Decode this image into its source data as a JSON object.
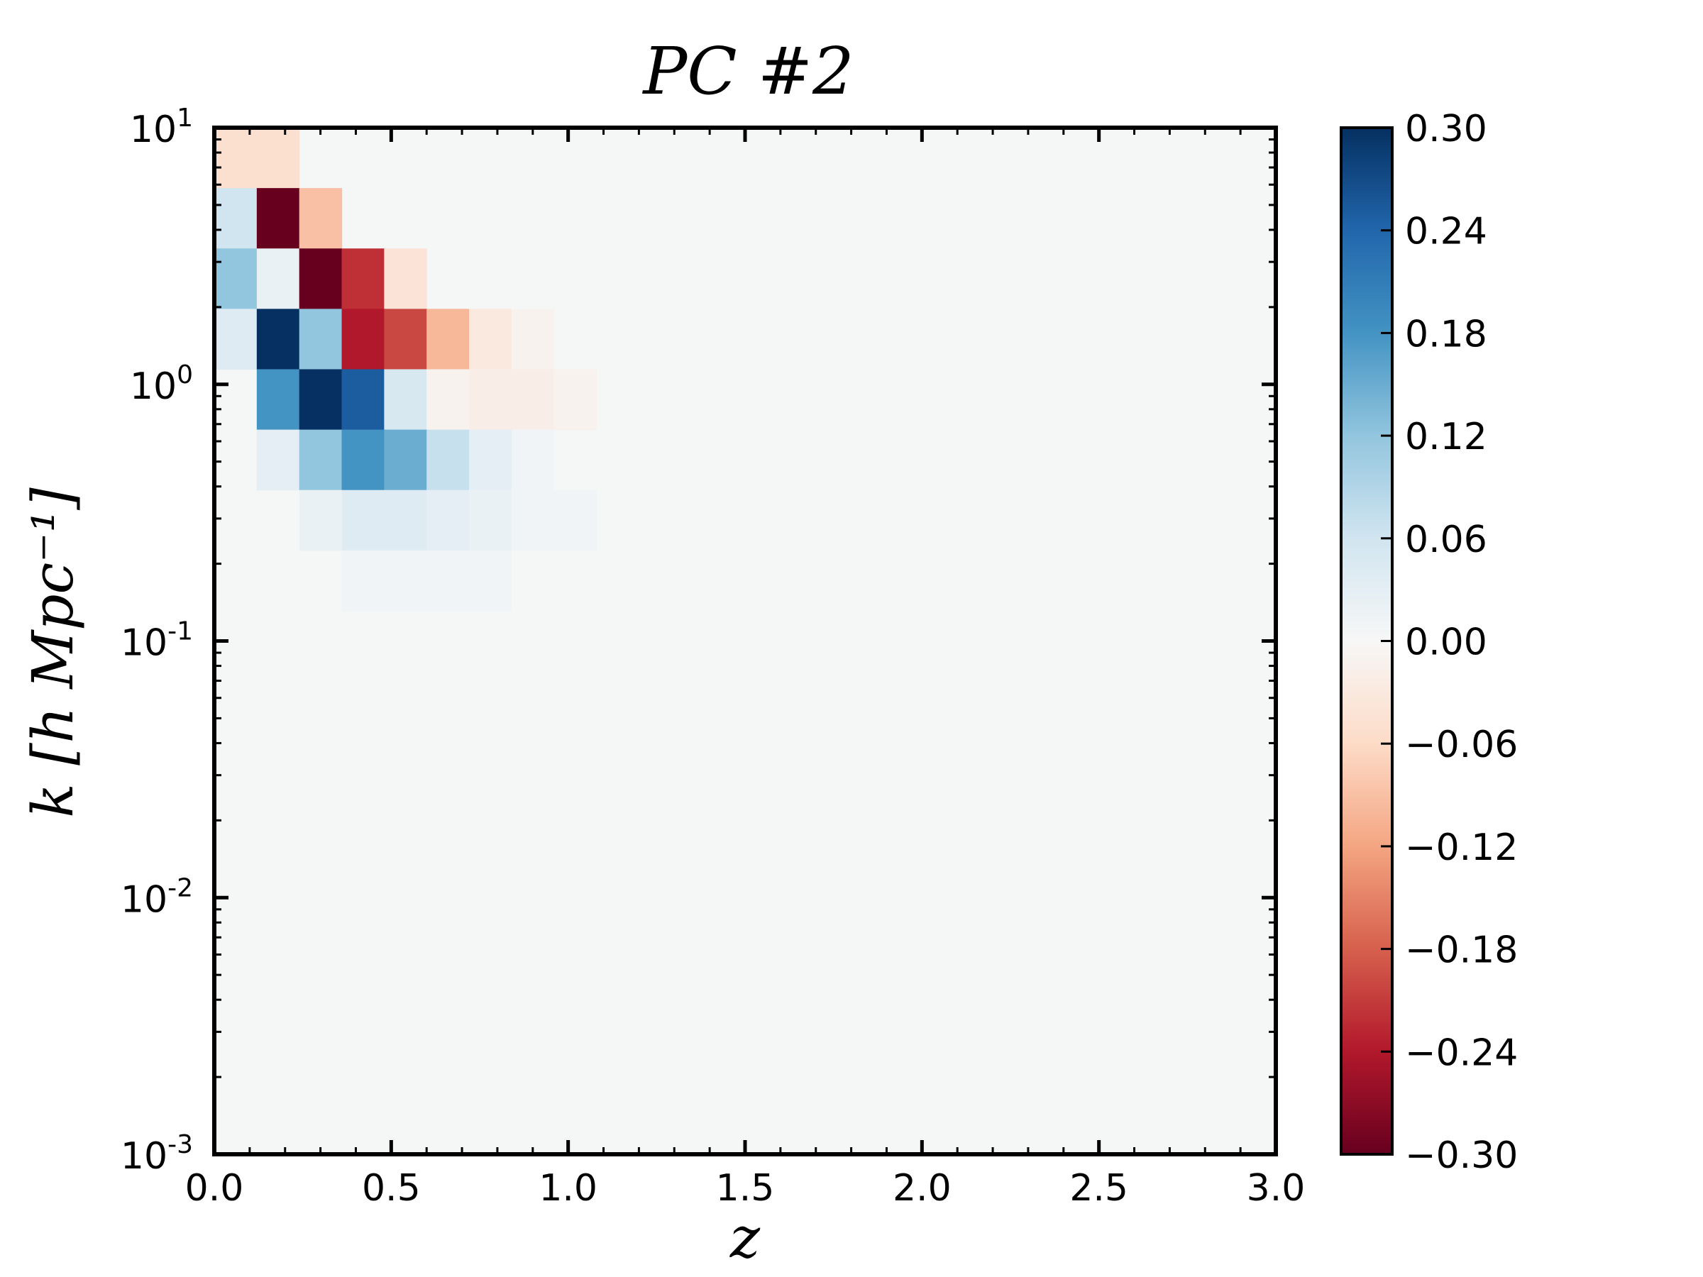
{
  "chart_data": {
    "type": "heatmap",
    "title": "PC #2",
    "xlabel": "z",
    "ylabel": "k [h Mpc⁻¹]",
    "x_scale": "linear",
    "y_scale": "log",
    "xlim": [
      0.0,
      3.0
    ],
    "ylim": [
      0.001,
      10
    ],
    "x_ticks": [
      "0.0",
      "0.5",
      "1.0",
      "1.5",
      "2.0",
      "2.5",
      "3.0"
    ],
    "y_ticks": [
      {
        "base": "10",
        "exp": "-3"
      },
      {
        "base": "10",
        "exp": "-2"
      },
      {
        "base": "10",
        "exp": "-1"
      },
      {
        "base": "10",
        "exp": "0"
      },
      {
        "base": "10",
        "exp": "1"
      }
    ],
    "colorbar": {
      "range": [
        -0.3,
        0.3
      ],
      "ticks": [
        "0.30",
        "0.24",
        "0.18",
        "0.12",
        "0.06",
        "0.00",
        "−0.06",
        "−0.12",
        "−0.18",
        "−0.24",
        "−0.30"
      ],
      "colormap": "RdBu (red = negative, blue = positive)",
      "color_stops": [
        "#67001f",
        "#b2182b",
        "#d6604d",
        "#f4a582",
        "#fddbc7",
        "#f7f7f7",
        "#d1e5f0",
        "#92c5de",
        "#4393c3",
        "#2166ac",
        "#053061"
      ]
    },
    "grid": false,
    "x_bins": 25,
    "y_bins": 17,
    "note_cells": "values: rows ordered from highest k bin (top) to lowest; columns ordered by z bin from 0.0",
    "values": [
      [
        -0.05,
        -0.05,
        0.0,
        0.0,
        0.0,
        0.0,
        0.0,
        0.0,
        0.0,
        0.0,
        0.0,
        0.0,
        0.0,
        0.0,
        0.0,
        0.0,
        0.0,
        0.0,
        0.0,
        0.0,
        0.0,
        0.0,
        0.0,
        0.0,
        0.0
      ],
      [
        0.06,
        -0.3,
        -0.09,
        0.0,
        0.0,
        0.0,
        0.0,
        0.0,
        0.0,
        0.0,
        0.0,
        0.0,
        0.0,
        0.0,
        0.0,
        0.0,
        0.0,
        0.0,
        0.0,
        0.0,
        0.0,
        0.0,
        0.0,
        0.0,
        0.0
      ],
      [
        0.12,
        0.02,
        -0.3,
        -0.22,
        -0.04,
        0.0,
        0.0,
        0.0,
        0.0,
        0.0,
        0.0,
        0.0,
        0.0,
        0.0,
        0.0,
        0.0,
        0.0,
        0.0,
        0.0,
        0.0,
        0.0,
        0.0,
        0.0,
        0.0,
        0.0
      ],
      [
        0.04,
        0.3,
        0.12,
        -0.24,
        -0.2,
        -0.1,
        -0.03,
        -0.01,
        0.0,
        0.0,
        0.0,
        0.0,
        0.0,
        0.0,
        0.0,
        0.0,
        0.0,
        0.0,
        0.0,
        0.0,
        0.0,
        0.0,
        0.0,
        0.0,
        0.0
      ],
      [
        0.0,
        0.18,
        0.3,
        0.25,
        0.05,
        -0.01,
        -0.02,
        -0.02,
        -0.01,
        0.0,
        0.0,
        0.0,
        0.0,
        0.0,
        0.0,
        0.0,
        0.0,
        0.0,
        0.0,
        0.0,
        0.0,
        0.0,
        0.0,
        0.0,
        0.0
      ],
      [
        0.0,
        0.03,
        0.12,
        0.18,
        0.15,
        0.07,
        0.03,
        0.01,
        0.0,
        0.0,
        0.0,
        0.0,
        0.0,
        0.0,
        0.0,
        0.0,
        0.0,
        0.0,
        0.0,
        0.0,
        0.0,
        0.0,
        0.0,
        0.0,
        0.0
      ],
      [
        0.0,
        0.0,
        0.02,
        0.04,
        0.04,
        0.03,
        0.02,
        0.01,
        0.01,
        0.0,
        0.0,
        0.0,
        0.0,
        0.0,
        0.0,
        0.0,
        0.0,
        0.0,
        0.0,
        0.0,
        0.0,
        0.0,
        0.0,
        0.0,
        0.0
      ],
      [
        0.0,
        0.0,
        0.0,
        0.01,
        0.01,
        0.01,
        0.01,
        0.0,
        0.0,
        0.0,
        0.0,
        0.0,
        0.0,
        0.0,
        0.0,
        0.0,
        0.0,
        0.0,
        0.0,
        0.0,
        0.0,
        0.0,
        0.0,
        0.0,
        0.0
      ],
      [
        0.0,
        0.0,
        0.0,
        0.0,
        0.0,
        0.0,
        0.0,
        0.0,
        0.0,
        0.0,
        0.0,
        0.0,
        0.0,
        0.0,
        0.0,
        0.0,
        0.0,
        0.0,
        0.0,
        0.0,
        0.0,
        0.0,
        0.0,
        0.0,
        0.0
      ],
      [
        0.0,
        0.0,
        0.0,
        0.0,
        0.0,
        0.0,
        0.0,
        0.0,
        0.0,
        0.0,
        0.0,
        0.0,
        0.0,
        0.0,
        0.0,
        0.0,
        0.0,
        0.0,
        0.0,
        0.0,
        0.0,
        0.0,
        0.0,
        0.0,
        0.0
      ],
      [
        0.0,
        0.0,
        0.0,
        0.0,
        0.0,
        0.0,
        0.0,
        0.0,
        0.0,
        0.0,
        0.0,
        0.0,
        0.0,
        0.0,
        0.0,
        0.0,
        0.0,
        0.0,
        0.0,
        0.0,
        0.0,
        0.0,
        0.0,
        0.0,
        0.0
      ],
      [
        0.0,
        0.0,
        0.0,
        0.0,
        0.0,
        0.0,
        0.0,
        0.0,
        0.0,
        0.0,
        0.0,
        0.0,
        0.0,
        0.0,
        0.0,
        0.0,
        0.0,
        0.0,
        0.0,
        0.0,
        0.0,
        0.0,
        0.0,
        0.0,
        0.0
      ],
      [
        0.0,
        0.0,
        0.0,
        0.0,
        0.0,
        0.0,
        0.0,
        0.0,
        0.0,
        0.0,
        0.0,
        0.0,
        0.0,
        0.0,
        0.0,
        0.0,
        0.0,
        0.0,
        0.0,
        0.0,
        0.0,
        0.0,
        0.0,
        0.0,
        0.0
      ],
      [
        0.0,
        0.0,
        0.0,
        0.0,
        0.0,
        0.0,
        0.0,
        0.0,
        0.0,
        0.0,
        0.0,
        0.0,
        0.0,
        0.0,
        0.0,
        0.0,
        0.0,
        0.0,
        0.0,
        0.0,
        0.0,
        0.0,
        0.0,
        0.0,
        0.0
      ],
      [
        0.0,
        0.0,
        0.0,
        0.0,
        0.0,
        0.0,
        0.0,
        0.0,
        0.0,
        0.0,
        0.0,
        0.0,
        0.0,
        0.0,
        0.0,
        0.0,
        0.0,
        0.0,
        0.0,
        0.0,
        0.0,
        0.0,
        0.0,
        0.0,
        0.0
      ],
      [
        0.0,
        0.0,
        0.0,
        0.0,
        0.0,
        0.0,
        0.0,
        0.0,
        0.0,
        0.0,
        0.0,
        0.0,
        0.0,
        0.0,
        0.0,
        0.0,
        0.0,
        0.0,
        0.0,
        0.0,
        0.0,
        0.0,
        0.0,
        0.0,
        0.0
      ],
      [
        0.0,
        0.0,
        0.0,
        0.0,
        0.0,
        0.0,
        0.0,
        0.0,
        0.0,
        0.0,
        0.0,
        0.0,
        0.0,
        0.0,
        0.0,
        0.0,
        0.0,
        0.0,
        0.0,
        0.0,
        0.0,
        0.0,
        0.0,
        0.0,
        0.0
      ]
    ]
  }
}
